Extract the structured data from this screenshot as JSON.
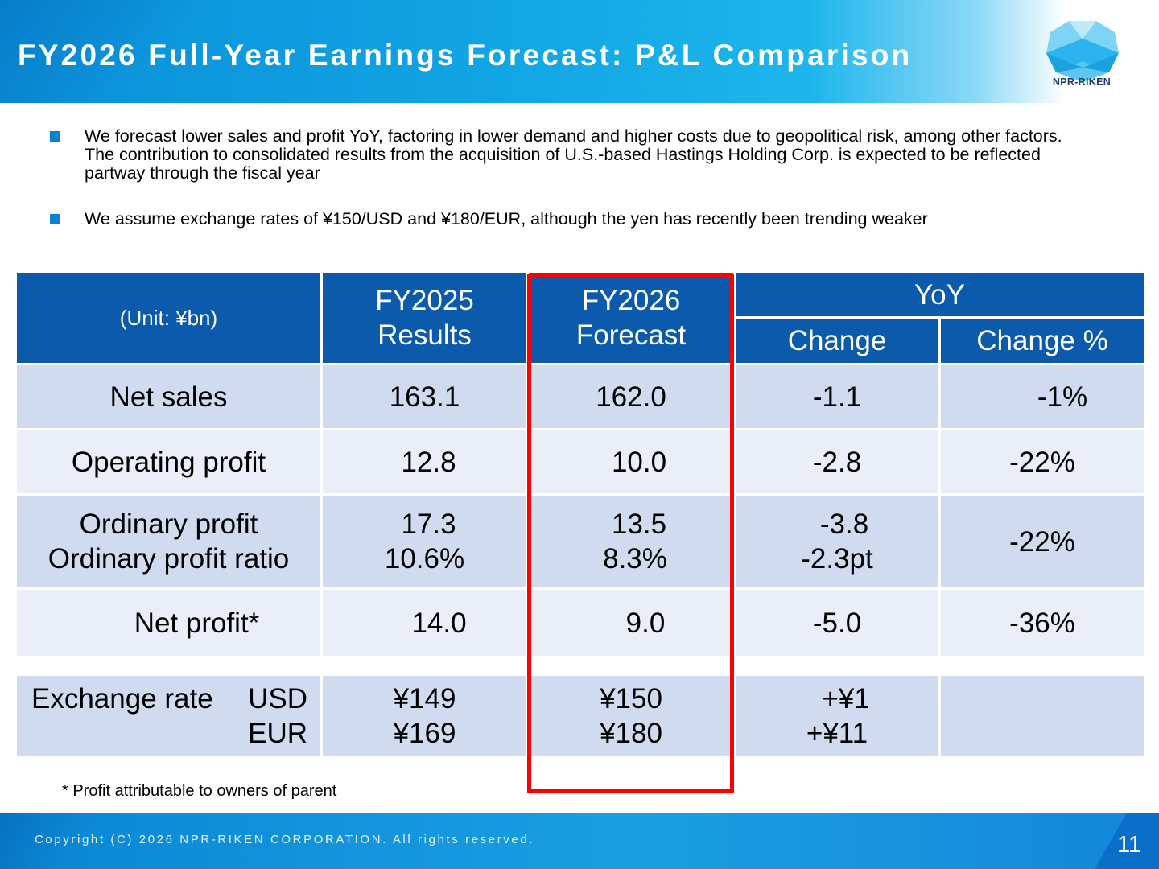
{
  "header": {
    "title": "FY2026 Full-Year Earnings Forecast: P&L Comparison",
    "logo_text": "NPR-RIKEN"
  },
  "bullets": [
    "We forecast lower sales and profit YoY, factoring in lower demand and higher costs due to geopolitical risk, among other factors. The contribution to consolidated results from the acquisition of U.S.-based Hastings Holding Corp. is expected to be reflected partway through the fiscal year",
    "We assume exchange rates of ¥150/USD and ¥180/EUR, although the yen has recently been trending weaker"
  ],
  "table": {
    "unit": "(Unit: ¥bn)",
    "col_fy2025_line1": "FY2025",
    "col_fy2025_line2": "Results",
    "col_fy2026_line1": "FY2026",
    "col_fy2026_line2": "Forecast",
    "col_yoy": "YoY",
    "col_change": "Change",
    "col_change_pct": "Change %",
    "rows": [
      {
        "label": "Net sales",
        "fy2025": "163.1",
        "fy2026": "162.0",
        "change": "-1.1",
        "pct": "-1%"
      },
      {
        "label": "Operating profit",
        "fy2025": "12.8",
        "fy2026": "10.0",
        "change": "-2.8",
        "pct": "-22%"
      },
      {
        "label": "Ordinary profit",
        "label2": "Ordinary profit ratio",
        "fy2025": "17.3",
        "fy2025b": "10.6%",
        "fy2026": "13.5",
        "fy2026b": "8.3%",
        "change": "-3.8",
        "changeb": "-2.3pt",
        "pct": "-22%"
      },
      {
        "label": "Net profit*",
        "fy2025": "14.0",
        "fy2026": "9.0",
        "change": "-5.0",
        "pct": "-36%"
      }
    ],
    "fx": {
      "label": "Exchange rate",
      "usd": "USD",
      "eur": "EUR",
      "fy2025_usd": "¥149",
      "fy2025_eur": "¥169",
      "fy2026_usd": "¥150",
      "fy2026_eur": "¥180",
      "change_usd": "+¥1",
      "change_eur": "+¥11"
    }
  },
  "footnote": "* Profit attributable to owners of parent",
  "footer": {
    "copyright": "Copyright (C) 2026 NPR-RIKEN CORPORATION. All rights reserved.",
    "page_number": "11"
  },
  "colors": {
    "header_blue": "#0a8fd8",
    "table_header": "#0b5aac",
    "row_dark": "#d0dbef",
    "row_light": "#e9eef8",
    "highlight_red": "#ff0000",
    "bullet_blue": "#0b7fd0"
  }
}
